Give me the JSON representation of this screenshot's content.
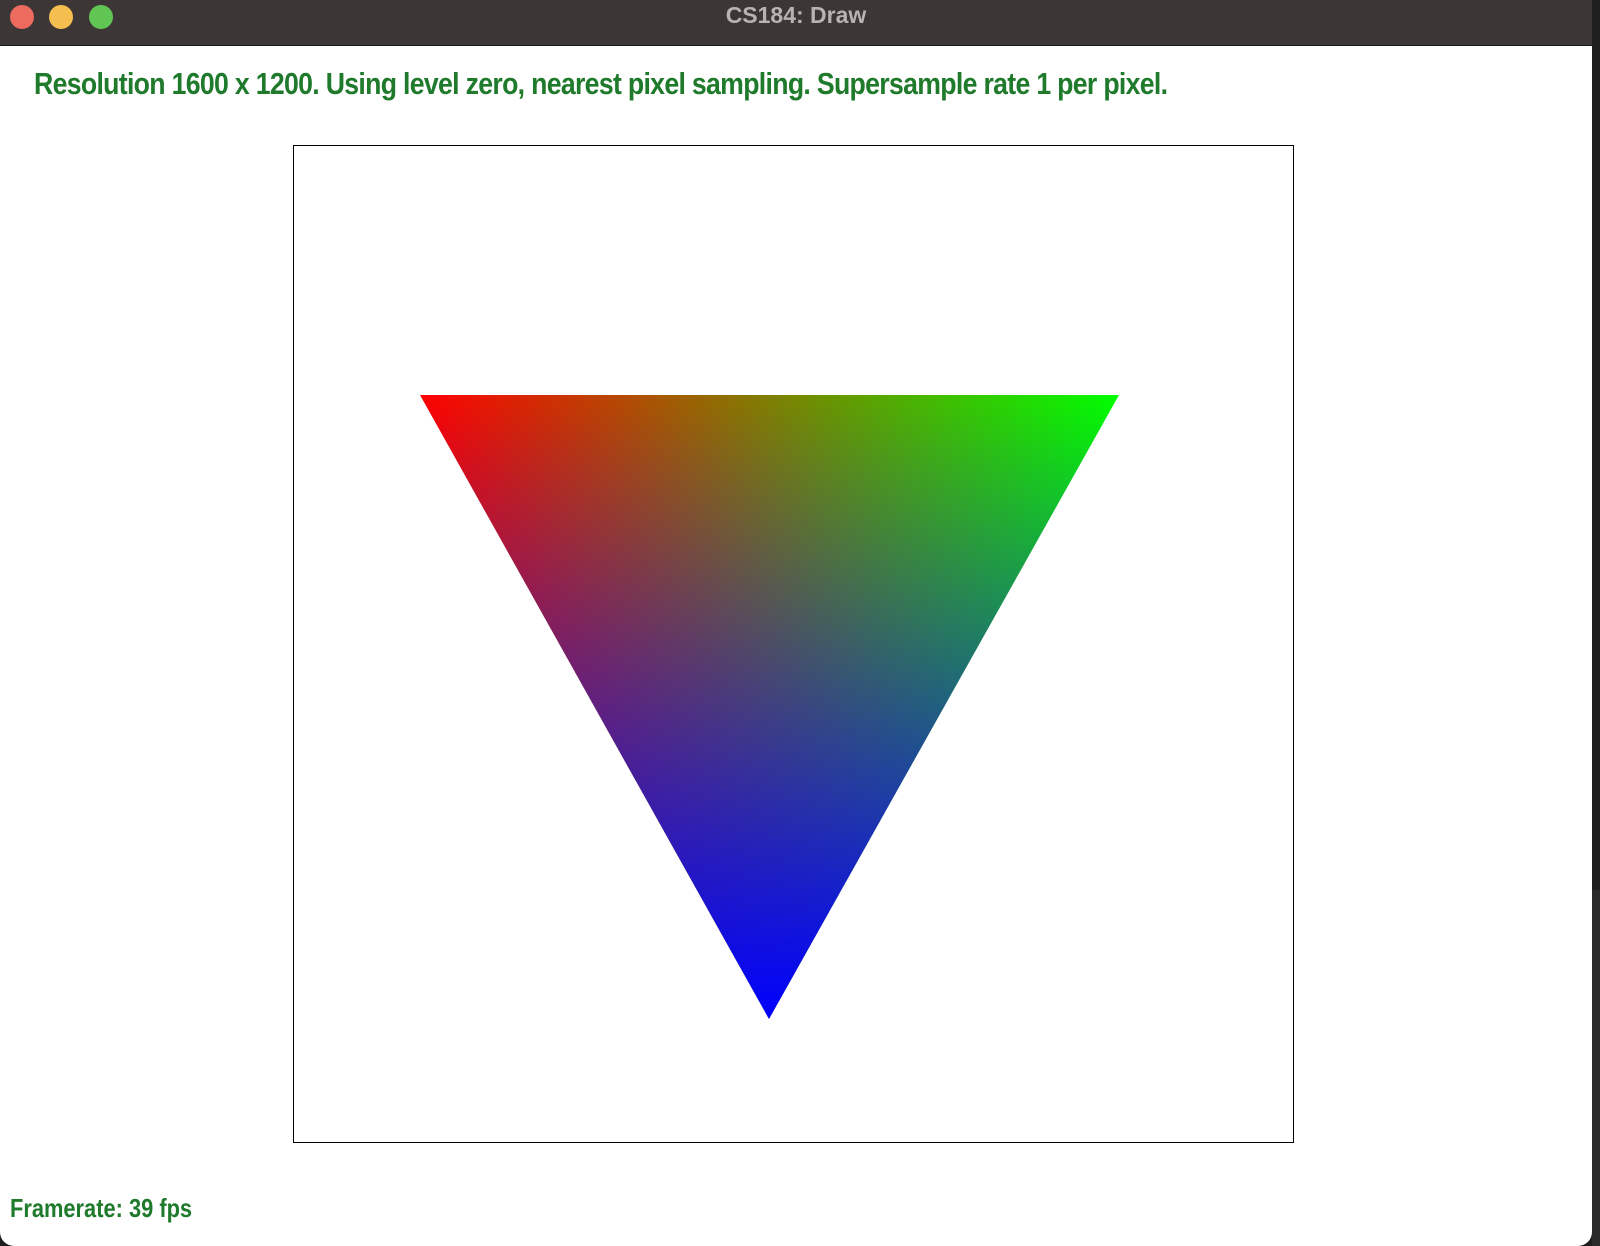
{
  "window": {
    "title": "CS184: Draw"
  },
  "status": {
    "text": "Resolution 1600 x 1200. Using level zero, nearest pixel sampling. Supersample rate 1 per pixel."
  },
  "footer": {
    "framerate": "Framerate: 39 fps"
  },
  "triangle": {
    "colors": {
      "top_left": "#ff0000",
      "top_right": "#00ff00",
      "bottom": "#0000ff"
    }
  }
}
